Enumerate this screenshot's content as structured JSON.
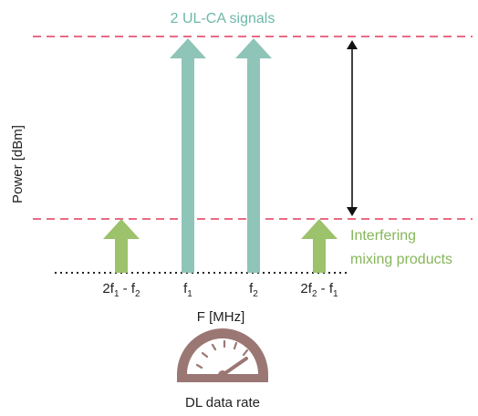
{
  "top_label": "2 UL-CA signals",
  "y_axis_label": "Power [dBm]",
  "x_axis_label": "F [MHz]",
  "imd_label_line1": "Interfering",
  "imd_label_line2": "mixing products",
  "gauge_label": "DL data rate",
  "freq_labels": {
    "imd_low": {
      "base": "2f",
      "s1": "1",
      "mid": " - f",
      "s2": "2"
    },
    "f1": {
      "base": "f",
      "s1": "1"
    },
    "f2": {
      "base": "f",
      "s1": "2"
    },
    "imd_high": {
      "base": "2f",
      "s1": "2",
      "mid": " - f",
      "s2": "1"
    }
  },
  "colors": {
    "carrier": "#8fc4b8",
    "imd": "#9cc26c",
    "dashed": "#e23a5c",
    "gauge": "#9b7774",
    "text": "#222222",
    "green_text": "#86b65a",
    "teal_text": "#6db8a8"
  }
}
